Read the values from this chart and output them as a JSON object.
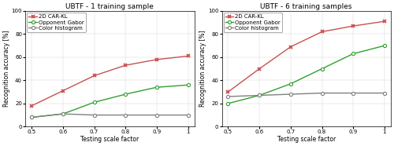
{
  "x": [
    0.5,
    0.6,
    0.7,
    0.8,
    0.9,
    1.0
  ],
  "left": {
    "title": "UBTF - 1 training sample",
    "car_kl": [
      18,
      31,
      44,
      53,
      58,
      61
    ],
    "opp_gabor": [
      8,
      11,
      21,
      28,
      34,
      36
    ],
    "color_hist": [
      8,
      11,
      10,
      10,
      10,
      10
    ]
  },
  "right": {
    "title": "UBTF - 6 training samples",
    "car_kl": [
      30,
      50,
      69,
      82,
      87,
      91
    ],
    "opp_gabor": [
      20,
      27,
      37,
      50,
      63,
      70
    ],
    "color_hist": [
      26,
      27,
      28,
      29,
      29,
      29
    ]
  },
  "xlabel": "Testing scale factor",
  "ylabel": "Recognition accuracy [%]",
  "ylim": [
    0,
    100
  ],
  "yticks": [
    0,
    20,
    40,
    60,
    80,
    100
  ],
  "xticks": [
    0.5,
    0.6,
    0.7,
    0.8,
    0.9,
    1.0
  ],
  "xtick_labels": [
    "0.5",
    "0.6",
    "0.7",
    "0.8",
    "0.9",
    "1"
  ],
  "color_car_kl": "#c85050",
  "color_opp_gabor": "#30a030",
  "color_hist": "#808080",
  "legend_labels": [
    "2D CAR-KL",
    "Opponent Gabor",
    "Color histogram"
  ],
  "marker_car": "x",
  "marker_gabor": "o",
  "marker_hist": "o",
  "title_fontsize": 6.5,
  "axis_label_fontsize": 5.5,
  "tick_fontsize": 5.0,
  "legend_fontsize": 5.0,
  "linewidth": 1.0,
  "markersize": 3.0
}
